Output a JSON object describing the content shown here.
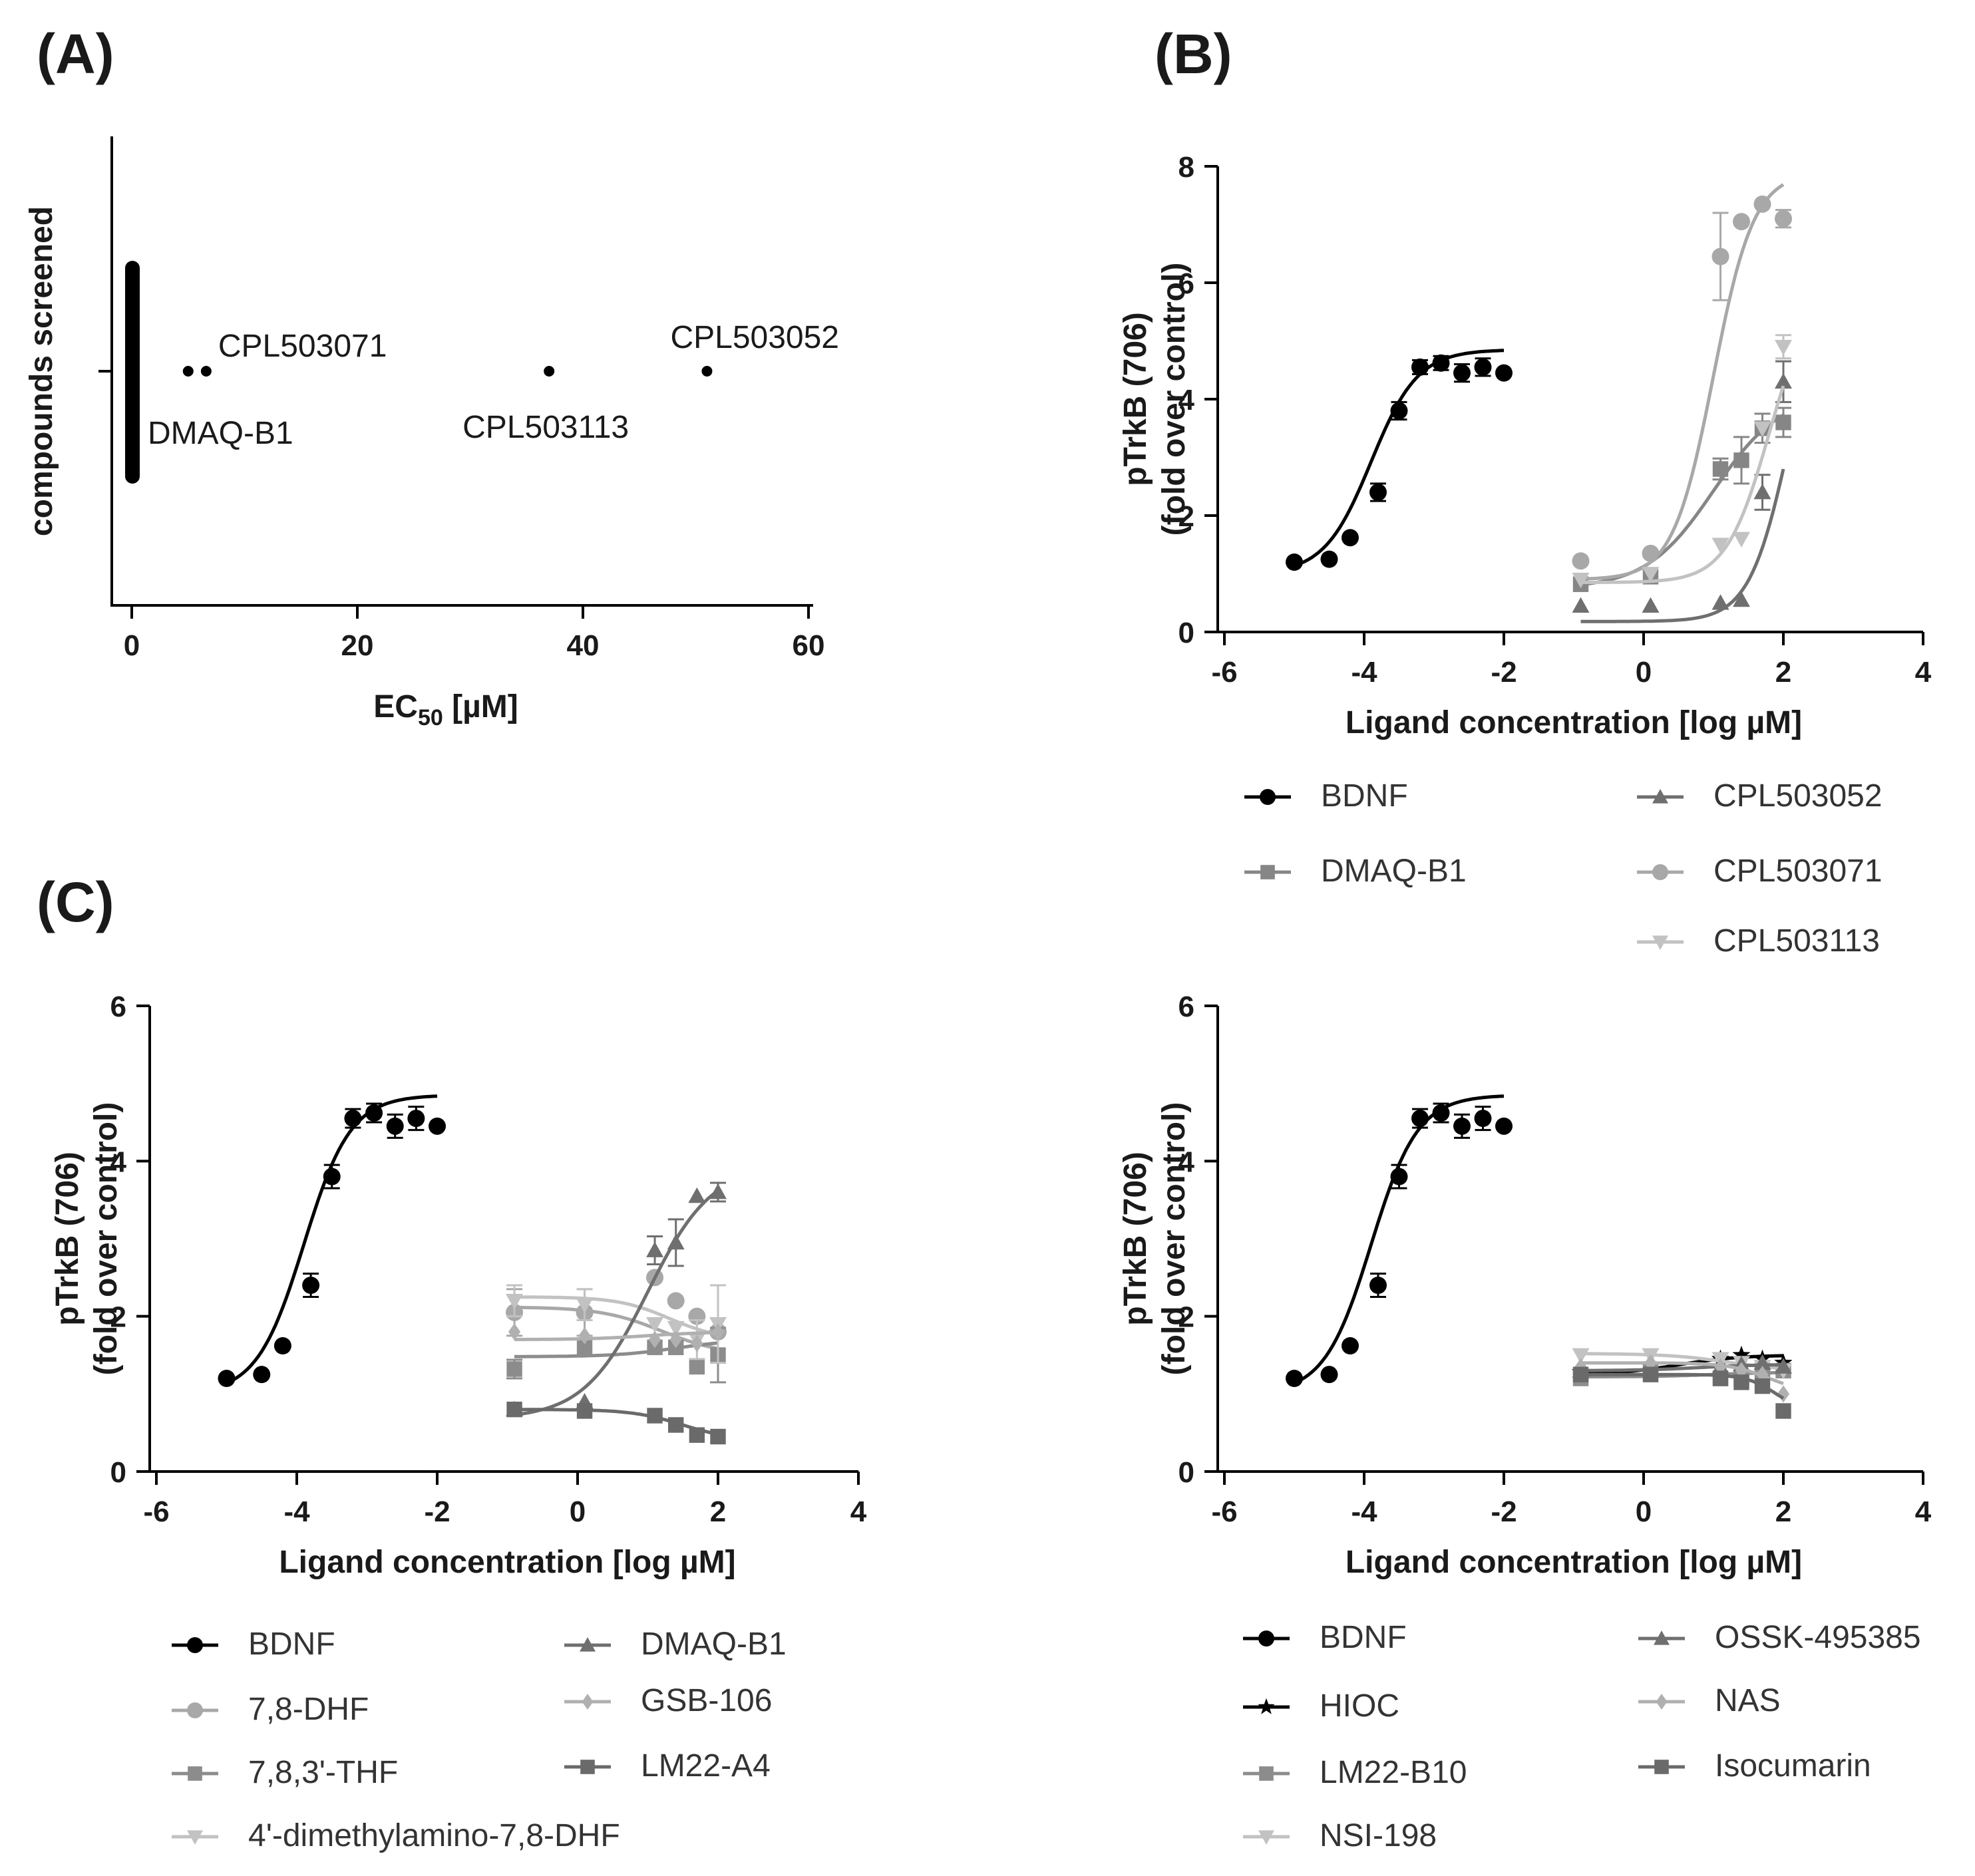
{
  "figure": {
    "panel_labels": [
      "(A)",
      "(B)",
      "(C)"
    ]
  },
  "chart_data": [
    {
      "id": "A",
      "type": "scatter",
      "title": "",
      "xlabel": "EC",
      "xlabel_sub": "50",
      "xlabel_unit": " [µM]",
      "ylabel": "compounds screened",
      "xlim": [
        -2,
        60
      ],
      "xticks": [
        0,
        20,
        40,
        60
      ],
      "tick_labels": [
        "0",
        "20",
        "40",
        "60"
      ],
      "points": [
        {
          "x": 5.0,
          "label": ""
        },
        {
          "x": 6.6,
          "label": "CPL503071"
        },
        {
          "x": 37.0,
          "label": "CPL503113"
        },
        {
          "x": 51.0,
          "label": "CPL503052"
        }
      ],
      "cluster": {
        "x": 0,
        "label": "DMAQ-B1"
      }
    },
    {
      "id": "B",
      "type": "line",
      "xlabel": "Ligand concentration [log µM]",
      "ylabel_lines": [
        "pTrkB (706)",
        "(fold over control)"
      ],
      "xlim": [
        -6,
        4
      ],
      "ylim": [
        0,
        8
      ],
      "xticks": [
        -6,
        -4,
        -2,
        0,
        2,
        4
      ],
      "yticks": [
        0,
        2,
        4,
        6,
        8
      ],
      "xtick_labels": [
        "-6",
        "-4",
        "-2",
        "0",
        "2",
        "4"
      ],
      "ytick_labels": [
        "0",
        "2",
        "4",
        "6",
        "8"
      ],
      "series": [
        {
          "name": "BDNF",
          "color": "#000000",
          "marker": "circle",
          "x": [
            -5,
            -4.5,
            -4.2,
            -3.8,
            -3.5,
            -3.2,
            -2.9,
            -2.6,
            -2.3,
            -2
          ],
          "y": [
            1.2,
            1.25,
            1.62,
            2.4,
            3.8,
            4.55,
            4.62,
            4.45,
            4.55,
            4.45
          ],
          "err": [
            0,
            0,
            0,
            0.15,
            0.15,
            0.12,
            0.12,
            0.15,
            0.15,
            0
          ],
          "fit": {
            "bottom": 1.0,
            "top": 4.85,
            "ec50": -3.9,
            "hill": 1.3,
            "x0": -5,
            "x1": -2
          }
        },
        {
          "name": "DMAQ-B1",
          "color": "#868686",
          "marker": "square",
          "x": [
            -0.9,
            0.1,
            1.1,
            1.4,
            1.7,
            2
          ],
          "y": [
            0.82,
            0.95,
            2.8,
            2.95,
            3.5,
            3.6
          ],
          "err": [
            0,
            0,
            0.18,
            0.4,
            0.25,
            0.25
          ],
          "fit": {
            "bottom": 0.75,
            "top": 4.1,
            "ec50": 1.0,
            "hill": 0.9,
            "x0": -0.9,
            "x1": 2
          }
        },
        {
          "name": "CPL503052",
          "color": "#6f6f6f",
          "marker": "triangle",
          "x": [
            -0.9,
            0.1,
            1.1,
            1.4,
            1.7,
            2
          ],
          "y": [
            0.45,
            0.45,
            0.5,
            0.55,
            2.4,
            4.3
          ],
          "err": [
            0,
            0,
            0,
            0,
            0.3,
            0.35
          ],
          "fit": {
            "bottom": 0.18,
            "top": 6.5,
            "ec50": 2.1,
            "hill": 1.5,
            "x0": -0.9,
            "x1": 2
          }
        },
        {
          "name": "CPL503071",
          "color": "#a8a8a8",
          "marker": "circle",
          "x": [
            -0.9,
            0.1,
            1.1,
            1.4,
            1.7,
            2
          ],
          "y": [
            1.22,
            1.35,
            6.45,
            7.05,
            7.35,
            7.1
          ],
          "err": [
            0,
            0,
            0.75,
            0,
            0,
            0.15
          ],
          "fit": {
            "bottom": 0.9,
            "top": 7.9,
            "ec50": 1.0,
            "hill": 1.5,
            "x0": -0.9,
            "x1": 2
          }
        },
        {
          "name": "CPL503113",
          "color": "#c2c2c2",
          "marker": "triangle-down",
          "x": [
            -0.9,
            0.1,
            1.1,
            1.4,
            1.7,
            2
          ],
          "y": [
            0.9,
            1.0,
            1.5,
            1.6,
            3.5,
            4.9
          ],
          "err": [
            0,
            0,
            0,
            0,
            0,
            0.2
          ],
          "fit": {
            "bottom": 0.85,
            "top": 6.0,
            "ec50": 1.8,
            "hill": 1.4,
            "x0": -0.9,
            "x1": 2
          }
        }
      ]
    },
    {
      "id": "C-left",
      "type": "line",
      "xlabel": "Ligand concentration [log µM]",
      "ylabel_lines": [
        "pTrkB (706)",
        "(fold over control)"
      ],
      "xlim": [
        -6,
        4
      ],
      "ylim": [
        0,
        6
      ],
      "xticks": [
        -6,
        -4,
        -2,
        0,
        2,
        4
      ],
      "yticks": [
        0,
        2,
        4,
        6
      ],
      "xtick_labels": [
        "-6",
        "-4",
        "-2",
        "0",
        "2",
        "4"
      ],
      "ytick_labels": [
        "0",
        "2",
        "4",
        "6"
      ],
      "series": [
        {
          "name": "BDNF",
          "color": "#000000",
          "marker": "circle",
          "x": [
            -5,
            -4.5,
            -4.2,
            -3.8,
            -3.5,
            -3.2,
            -2.9,
            -2.6,
            -2.3,
            -2
          ],
          "y": [
            1.2,
            1.25,
            1.62,
            2.4,
            3.8,
            4.55,
            4.62,
            4.45,
            4.55,
            4.45
          ],
          "err": [
            0,
            0,
            0,
            0.15,
            0.15,
            0.12,
            0.12,
            0.15,
            0.15,
            0
          ],
          "fit": {
            "bottom": 1.0,
            "top": 4.85,
            "ec50": -3.9,
            "hill": 1.3,
            "x0": -5,
            "x1": -2
          }
        },
        {
          "name": "7,8-DHF",
          "color": "#a8a8a8",
          "marker": "circle",
          "x": [
            -0.9,
            0.1,
            1.1,
            1.4,
            1.7,
            2
          ],
          "y": [
            2.05,
            2.05,
            2.5,
            2.2,
            2.0,
            1.8
          ],
          "err": [
            0.3,
            0.3,
            0,
            0,
            0,
            0
          ],
          "fit": {
            "bottom": 1.5,
            "top": 2.12,
            "ec50": 1.2,
            "hill": -1.0,
            "x0": -0.9,
            "x1": 2
          }
        },
        {
          "name": "7,8,3'-THF",
          "color": "#8c8c8c",
          "marker": "square",
          "x": [
            -0.9,
            0.1,
            1.1,
            1.4,
            1.7,
            2
          ],
          "y": [
            1.32,
            1.6,
            1.6,
            1.6,
            1.35,
            1.5
          ],
          "err": [
            0.12,
            0,
            0,
            0,
            0,
            0.35
          ],
          "fit": {
            "bottom": 1.48,
            "top": 1.7,
            "ec50": 1.4,
            "hill": 1.0,
            "x0": -0.9,
            "x1": 2
          }
        },
        {
          "name": "4'-dimethylamino-7,8-DHF",
          "color": "#c2c2c2",
          "marker": "triangle-down",
          "x": [
            -0.9,
            0.1,
            1.1,
            1.4,
            1.7,
            2
          ],
          "y": [
            2.2,
            2.15,
            1.9,
            1.85,
            1.7,
            1.9
          ],
          "err": [
            0.2,
            0.2,
            0,
            0,
            0.25,
            0.5
          ],
          "fit": {
            "bottom": 1.7,
            "top": 2.25,
            "ec50": 1.3,
            "hill": -1.2,
            "x0": -0.9,
            "x1": 2
          }
        },
        {
          "name": "DMAQ-B1",
          "color": "#6f6f6f",
          "marker": "triangle",
          "x": [
            -0.9,
            0.1,
            1.1,
            1.4,
            1.7,
            2
          ],
          "y": [
            0.8,
            0.9,
            2.85,
            2.95,
            3.55,
            3.6
          ],
          "err": [
            0,
            0,
            0.18,
            0.3,
            0,
            0.12
          ],
          "fit": {
            "bottom": 0.68,
            "top": 3.95,
            "ec50": 1.0,
            "hill": 0.95,
            "x0": -0.9,
            "x1": 2
          }
        },
        {
          "name": "GSB-106",
          "color": "#b0b0b0",
          "marker": "diamond",
          "x": [
            -0.9,
            0.1,
            1.1,
            1.4,
            1.7,
            2
          ],
          "y": [
            1.8,
            1.75,
            1.7,
            1.7,
            1.65,
            1.8
          ],
          "err": [
            0,
            0,
            0,
            0,
            0,
            0
          ],
          "fit": {
            "bottom": 1.7,
            "top": 1.8,
            "ec50": 1.0,
            "hill": 1.0,
            "x0": -0.9,
            "x1": 2
          }
        },
        {
          "name": "LM22-A4",
          "color": "#6a6a6a",
          "marker": "square",
          "x": [
            -0.9,
            0.1,
            1.1,
            1.4,
            1.7,
            2
          ],
          "y": [
            0.8,
            0.78,
            0.72,
            0.6,
            0.47,
            0.45
          ],
          "err": [
            0,
            0,
            0,
            0,
            0,
            0
          ],
          "fit": {
            "bottom": 0.4,
            "top": 0.8,
            "ec50": 1.5,
            "hill": -1.2,
            "x0": -0.9,
            "x1": 2
          }
        }
      ]
    },
    {
      "id": "C-right",
      "type": "line",
      "xlabel": "Ligand concentration [log µM]",
      "ylabel_lines": [
        "pTrkB (706)",
        "(fold over control)"
      ],
      "xlim": [
        -6,
        4
      ],
      "ylim": [
        0,
        6
      ],
      "xticks": [
        -6,
        -4,
        -2,
        0,
        2,
        4
      ],
      "yticks": [
        0,
        2,
        4,
        6
      ],
      "xtick_labels": [
        "-6",
        "-4",
        "-2",
        "0",
        "2",
        "4"
      ],
      "ytick_labels": [
        "0",
        "2",
        "4",
        "6"
      ],
      "series": [
        {
          "name": "BDNF",
          "color": "#000000",
          "marker": "circle",
          "x": [
            -5,
            -4.5,
            -4.2,
            -3.8,
            -3.5,
            -3.2,
            -2.9,
            -2.6,
            -2.3,
            -2
          ],
          "y": [
            1.2,
            1.25,
            1.62,
            2.4,
            3.8,
            4.55,
            4.62,
            4.45,
            4.55,
            4.45
          ],
          "err": [
            0,
            0,
            0,
            0.15,
            0.15,
            0.12,
            0.12,
            0.15,
            0.15,
            0
          ],
          "fit": {
            "bottom": 1.0,
            "top": 4.85,
            "ec50": -3.9,
            "hill": 1.3,
            "x0": -5,
            "x1": -2
          }
        },
        {
          "name": "HIOC",
          "color": "#000000",
          "marker": "star",
          "x": [
            -0.9,
            0.1,
            1.1,
            1.4,
            1.7,
            2
          ],
          "y": [
            1.28,
            1.35,
            1.45,
            1.5,
            1.45,
            1.4
          ],
          "err": [
            0,
            0,
            0,
            0,
            0,
            0
          ],
          "fit": {
            "bottom": 1.25,
            "top": 1.5,
            "ec50": 0.5,
            "hill": 1.0,
            "x0": -0.9,
            "x1": 2
          }
        },
        {
          "name": "LM22-B10",
          "color": "#8c8c8c",
          "marker": "square",
          "x": [
            -0.9,
            0.1,
            1.1,
            1.4,
            1.7,
            2
          ],
          "y": [
            1.2,
            1.28,
            1.2,
            1.2,
            1.3,
            1.3
          ],
          "err": [
            0,
            0,
            0,
            0,
            0,
            0
          ],
          "fit": {
            "bottom": 1.22,
            "top": 1.28,
            "ec50": 1.0,
            "hill": 1.0,
            "x0": -0.9,
            "x1": 2
          }
        },
        {
          "name": "NSI-198",
          "color": "#c2c2c2",
          "marker": "triangle-down",
          "x": [
            -0.9,
            0.1,
            1.1,
            1.4,
            1.7,
            2
          ],
          "y": [
            1.5,
            1.5,
            1.45,
            1.4,
            1.35,
            1.3
          ],
          "err": [
            0,
            0,
            0,
            0,
            0,
            0
          ],
          "fit": {
            "bottom": 1.3,
            "top": 1.52,
            "ec50": 1.2,
            "hill": -1.0,
            "x0": -0.9,
            "x1": 2
          }
        },
        {
          "name": "OSSK-495385",
          "color": "#6f6f6f",
          "marker": "triangle",
          "x": [
            -0.9,
            0.1,
            1.1,
            1.4,
            1.7,
            2
          ],
          "y": [
            1.3,
            1.32,
            1.35,
            1.38,
            1.4,
            1.35
          ],
          "err": [
            0,
            0,
            0,
            0,
            0,
            0
          ],
          "fit": {
            "bottom": 1.3,
            "top": 1.38,
            "ec50": 0.8,
            "hill": 1.0,
            "x0": -0.9,
            "x1": 2
          }
        },
        {
          "name": "NAS",
          "color": "#b0b0b0",
          "marker": "diamond",
          "x": [
            -0.9,
            0.1,
            1.1,
            1.4,
            1.7,
            2
          ],
          "y": [
            1.35,
            1.4,
            1.35,
            1.3,
            1.25,
            1.0
          ],
          "err": [
            0,
            0,
            0,
            0,
            0,
            0
          ],
          "fit": {
            "bottom": 1.0,
            "top": 1.4,
            "ec50": 1.8,
            "hill": -1.5,
            "x0": -0.9,
            "x1": 2
          }
        },
        {
          "name": "Isocumarin",
          "color": "#6a6a6a",
          "marker": "square",
          "x": [
            -0.9,
            0.1,
            1.1,
            1.4,
            1.7,
            2
          ],
          "y": [
            1.25,
            1.25,
            1.2,
            1.15,
            1.1,
            0.78
          ],
          "err": [
            0,
            0,
            0,
            0,
            0,
            0
          ],
          "fit": {
            "bottom": 0.75,
            "top": 1.25,
            "ec50": 1.9,
            "hill": -2.0,
            "x0": -0.9,
            "x1": 2
          }
        }
      ]
    }
  ]
}
